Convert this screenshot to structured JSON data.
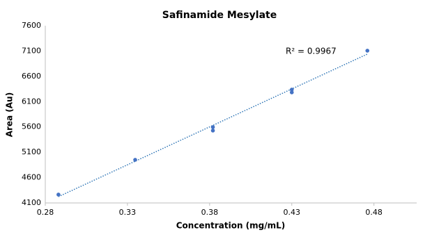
{
  "chart_data": {
    "type": "scatter",
    "title": "Safinamide Mesylate",
    "x_label": "Concentration (mg/mL)",
    "y_label": "Area (Au)",
    "series": [
      {
        "color": "#4472c4",
        "x": [
          0.288,
          0.3347,
          0.382,
          0.382,
          0.43,
          0.43,
          0.476
        ],
        "values": [
          4265,
          4952,
          5597,
          5529,
          6338,
          6283,
          7107
        ]
      }
    ],
    "trendline": {
      "color": "#2e75b6",
      "x": [
        0.288,
        0.476
      ],
      "values": [
        4224,
        7040
      ]
    },
    "annotation": "R² = 0.9967",
    "xlim": [
      0.28,
      0.506
    ],
    "xticks": [
      0.28,
      0.33,
      0.38,
      0.43,
      0.48
    ],
    "ylim": [
      4100,
      7600
    ],
    "yticks": [
      4100,
      4600,
      5100,
      5600,
      6100,
      6600,
      7100,
      7600
    ],
    "grid": false
  }
}
